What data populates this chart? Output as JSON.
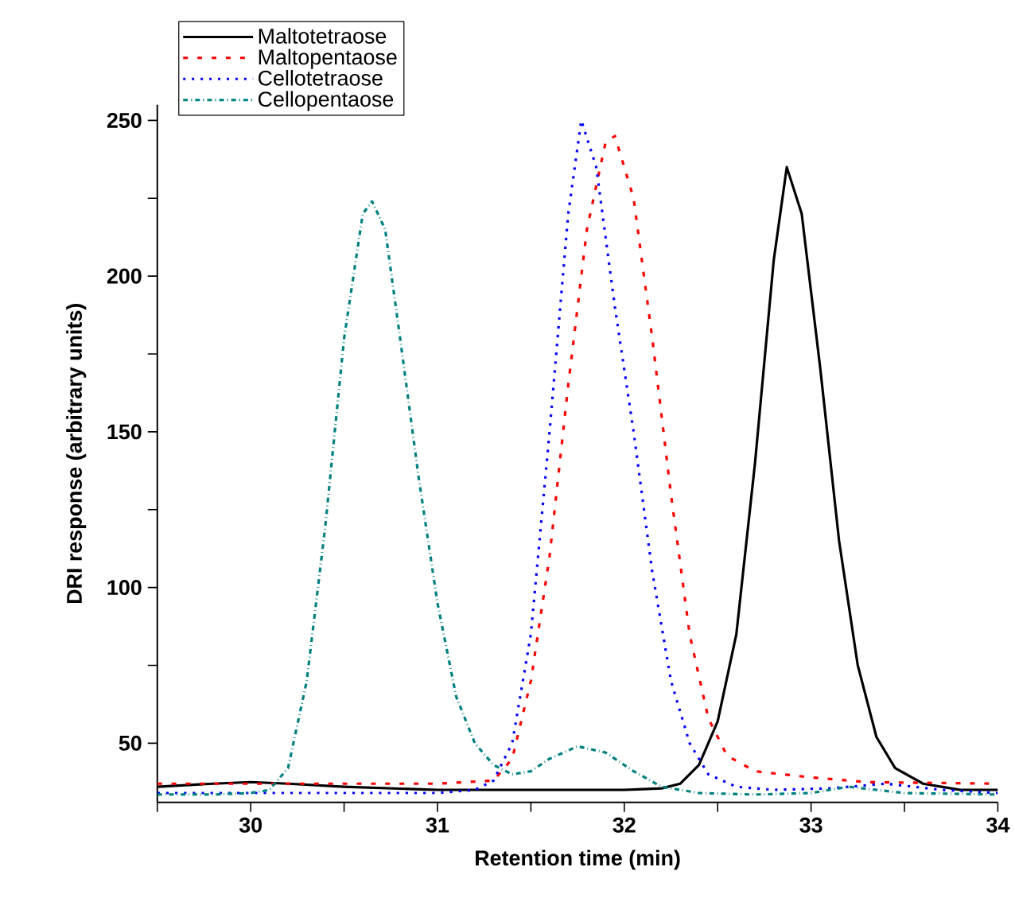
{
  "chart_data": {
    "type": "line",
    "xlabel": "Retention time (min)",
    "ylabel": "DRI response (arbitrary units)",
    "xlim": [
      29.5,
      34
    ],
    "ylim": [
      31,
      255
    ],
    "xticks": [
      {
        "value": 29.5,
        "label": null
      },
      30,
      {
        "value": 30.5,
        "label": null
      },
      31,
      {
        "value": 31.5,
        "label": null
      },
      32,
      {
        "value": 32.5,
        "label": null
      },
      33,
      {
        "value": 33.5,
        "label": null
      },
      34
    ],
    "yticks": [
      50,
      {
        "value": 75,
        "label": null
      },
      100,
      {
        "value": 125,
        "label": null
      },
      150,
      {
        "value": 175,
        "label": null
      },
      200,
      {
        "value": 225,
        "label": null
      },
      250
    ],
    "legend": "top left",
    "grid": false,
    "marker": "none",
    "series": [
      {
        "name": "Maltotetraose",
        "color": "#000000",
        "line_style": "solid",
        "x": [
          29.5,
          29.8,
          30.0,
          30.2,
          30.5,
          31,
          31.5,
          32,
          32.2,
          32.3,
          32.4,
          32.5,
          32.6,
          32.7,
          32.8,
          32.87,
          32.95,
          33.05,
          33.15,
          33.25,
          33.35,
          33.45,
          33.6,
          33.8,
          34
        ],
        "values": [
          36,
          37,
          37.5,
          37,
          36,
          35,
          35,
          35,
          35.5,
          37,
          43,
          57,
          85,
          140,
          205,
          235,
          220,
          170,
          115,
          75,
          52,
          42,
          37,
          35,
          35
        ]
      },
      {
        "name": "Maltopentaose",
        "color": "#ff0000",
        "line_style": "dashed",
        "x": [
          29.5,
          30,
          30.5,
          31,
          31.3,
          31.4,
          31.5,
          31.6,
          31.7,
          31.8,
          31.9,
          31.95,
          32.05,
          32.15,
          32.25,
          32.35,
          32.45,
          32.55,
          32.7,
          33,
          33.3,
          34
        ],
        "values": [
          37,
          37,
          37,
          37,
          38,
          45,
          70,
          110,
          165,
          215,
          243,
          245,
          225,
          180,
          130,
          85,
          58,
          46,
          41,
          39,
          37.5,
          37
        ]
      },
      {
        "name": "Cellotetraose",
        "color": "#0000ff",
        "line_style": "dotted",
        "x": [
          29.5,
          30,
          30.5,
          31,
          31.2,
          31.3,
          31.4,
          31.5,
          31.6,
          31.7,
          31.77,
          31.85,
          31.95,
          32.05,
          32.15,
          32.25,
          32.35,
          32.45,
          32.6,
          32.8,
          33.1,
          33.4,
          33.7,
          34
        ],
        "values": [
          34,
          34,
          34,
          34,
          35,
          38,
          50,
          85,
          150,
          220,
          250,
          235,
          190,
          150,
          105,
          70,
          50,
          40,
          36,
          35,
          35.5,
          37,
          35,
          34
        ]
      },
      {
        "name": "Cellopentaose",
        "color": "#008080",
        "line_style": "dashdot",
        "x": [
          29.5,
          29.8,
          30.0,
          30.1,
          30.2,
          30.3,
          30.4,
          30.5,
          30.6,
          30.65,
          30.72,
          30.8,
          30.9,
          31,
          31.1,
          31.2,
          31.3,
          31.4,
          31.5,
          31.6,
          31.75,
          31.9,
          32.05,
          32.2,
          32.4,
          32.7,
          33,
          33.2,
          33.5,
          34
        ],
        "values": [
          33.5,
          33.5,
          34,
          35,
          42,
          70,
          120,
          180,
          220,
          224,
          215,
          180,
          135,
          95,
          65,
          50,
          43,
          40,
          41,
          45,
          49,
          47,
          41,
          36,
          34,
          33.5,
          34,
          36,
          34,
          33.5
        ]
      }
    ]
  }
}
